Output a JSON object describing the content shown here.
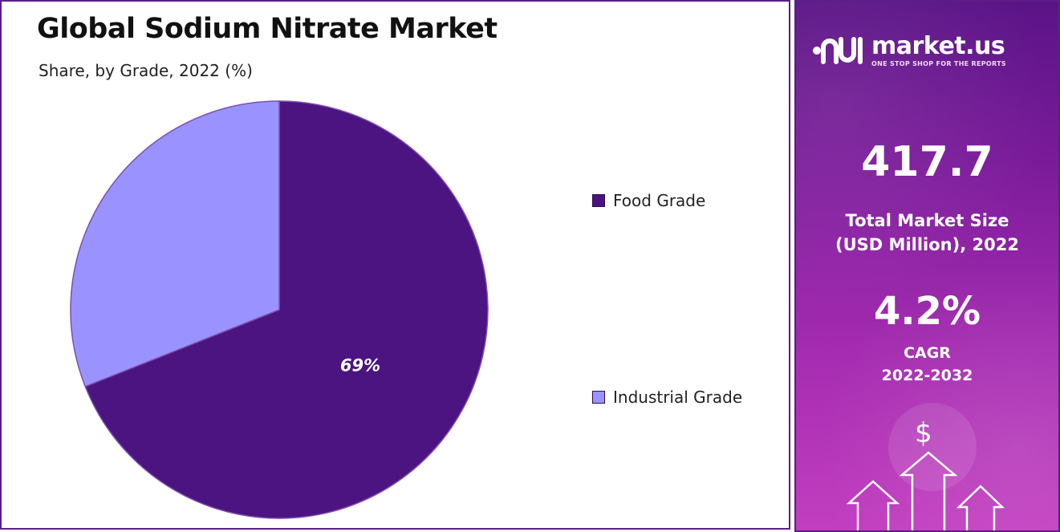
{
  "chart_data": {
    "type": "pie",
    "title": "Global Sodium Nitrate Market",
    "subtitle": "Share, by Grade, 2022 (%)",
    "categories": [
      "Food Grade",
      "Industrial Grade"
    ],
    "values": [
      69,
      31
    ],
    "data_labels": [
      "69%",
      ""
    ],
    "colors": [
      "#4b1480",
      "#9a93ff"
    ],
    "legend_position": "right",
    "start_angle_deg": 0
  },
  "info_panel": {
    "brand_name": "market.us",
    "brand_tagline": "ONE STOP SHOP FOR THE REPORTS",
    "market_size_value": "417.7",
    "market_size_label_line1": "Total Market Size",
    "market_size_label_line2": "(USD Million), 2022",
    "cagr_value": "4.2%",
    "cagr_label_line1": "CAGR",
    "cagr_label_line2": "2022-2032",
    "currency_symbol": "$",
    "icons": [
      "market-us-logo-icon",
      "dollar-icon",
      "up-arrow-icon"
    ]
  }
}
